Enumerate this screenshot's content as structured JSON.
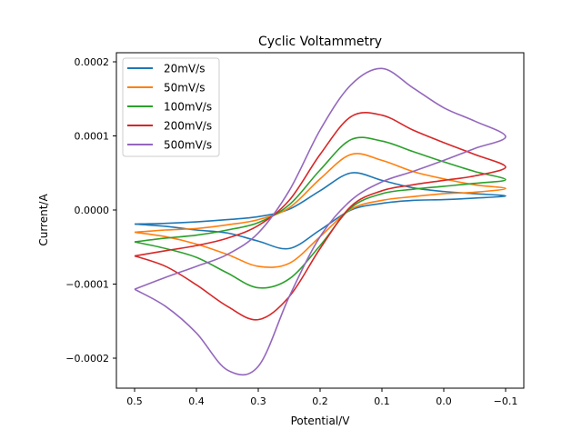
{
  "chart_data": {
    "type": "line",
    "title": "Cyclic Voltammetry",
    "xlabel": "Potential/V",
    "ylabel": "Current/A",
    "xlim": [
      0.53,
      -0.13
    ],
    "ylim": [
      -0.00024,
      0.000212
    ],
    "x_inverted": true,
    "grid": false,
    "legend": "top-left",
    "xticks": [
      0.5,
      0.4,
      0.3,
      0.2,
      0.1,
      0.0,
      -0.1
    ],
    "xtick_labels": [
      "0.5",
      "0.4",
      "0.3",
      "0.2",
      "0.1",
      "0.0",
      "−0.1"
    ],
    "yticks": [
      0.0002,
      0.0001,
      0.0,
      -0.0001,
      -0.0002
    ],
    "ytick_labels": [
      "0.0002",
      "0.0001",
      "0.0000",
      "−0.0001",
      "−0.0002"
    ],
    "x": [
      0.5,
      0.45,
      0.4,
      0.35,
      0.3,
      0.25,
      0.2,
      0.15,
      0.1,
      0.05,
      0,
      -0.05,
      -0.1,
      -0.05,
      0,
      0.05,
      0.1,
      0.15,
      0.2,
      0.25,
      0.3,
      0.35,
      0.4,
      0.45,
      0.5
    ],
    "series": [
      {
        "name": "20mV/s",
        "color": "#1f77b4",
        "values": [
          -1.9e-05,
          -1.8e-05,
          -1.6e-05,
          -1.3e-05,
          -9e-06,
          1e-06,
          2.6e-05,
          5e-05,
          4e-05,
          3e-05,
          2.5e-05,
          2.2e-05,
          1.9e-05,
          1.6e-05,
          1.4e-05,
          1.3e-05,
          9e-06,
          0.0,
          -2.7e-05,
          -5.2e-05,
          -4.2e-05,
          -3.1e-05,
          -2.7e-05,
          -2.2e-05,
          -1.9e-05
        ]
      },
      {
        "name": "50mV/s",
        "color": "#ff7f0e",
        "values": [
          -3e-05,
          -2.7e-05,
          -2.5e-05,
          -2e-05,
          -1.3e-05,
          3e-06,
          4.2e-05,
          7.5e-05,
          6.7e-05,
          5.2e-05,
          4.2e-05,
          3.4e-05,
          2.9e-05,
          2.4e-05,
          2.2e-05,
          1.8e-05,
          1.3e-05,
          1e-06,
          -3.6e-05,
          -7.2e-05,
          -7.6e-05,
          -6e-05,
          -4.6e-05,
          -3.6e-05,
          -3e-05
        ]
      },
      {
        "name": "100mV/s",
        "color": "#2ca02c",
        "values": [
          -4.3e-05,
          -3.8e-05,
          -3.4e-05,
          -2.7e-05,
          -1.7e-05,
          7e-06,
          5.4e-05,
          9.5e-05,
          9.3e-05,
          7.9e-05,
          6.5e-05,
          5.2e-05,
          4.1e-05,
          3.6e-05,
          3.2e-05,
          2.8e-05,
          2.2e-05,
          3e-06,
          -4.8e-05,
          -9.3e-05,
          -0.000105,
          -8.5e-05,
          -6.4e-05,
          -5.2e-05,
          -4.3e-05
        ]
      },
      {
        "name": "200mV/s",
        "color": "#d62728",
        "values": [
          -6.2e-05,
          -5.5e-05,
          -4.8e-05,
          -3.8e-05,
          -2.1e-05,
          1.3e-05,
          7.5e-05,
          0.000126,
          0.000128,
          0.000108,
          9.1e-05,
          7.5e-05,
          5.8e-05,
          4.6e-05,
          4e-05,
          3.4e-05,
          2.6e-05,
          5e-06,
          -5.2e-05,
          -0.000117,
          -0.000148,
          -0.00013,
          -0.000101,
          -7.6e-05,
          -6.2e-05
        ]
      },
      {
        "name": "500mV/s",
        "color": "#9467bd",
        "values": [
          -0.000107,
          -9.1e-05,
          -7.6e-05,
          -6e-05,
          -3.1e-05,
          2.6e-05,
          0.000108,
          0.000169,
          0.000191,
          0.000165,
          0.000138,
          0.00012,
          9.9e-05,
          8.3e-05,
          6.7e-05,
          5.2e-05,
          3.8e-05,
          1.3e-05,
          -3.6e-05,
          -0.000117,
          -0.000211,
          -0.000216,
          -0.000166,
          -0.00013,
          -0.000107
        ]
      }
    ]
  }
}
